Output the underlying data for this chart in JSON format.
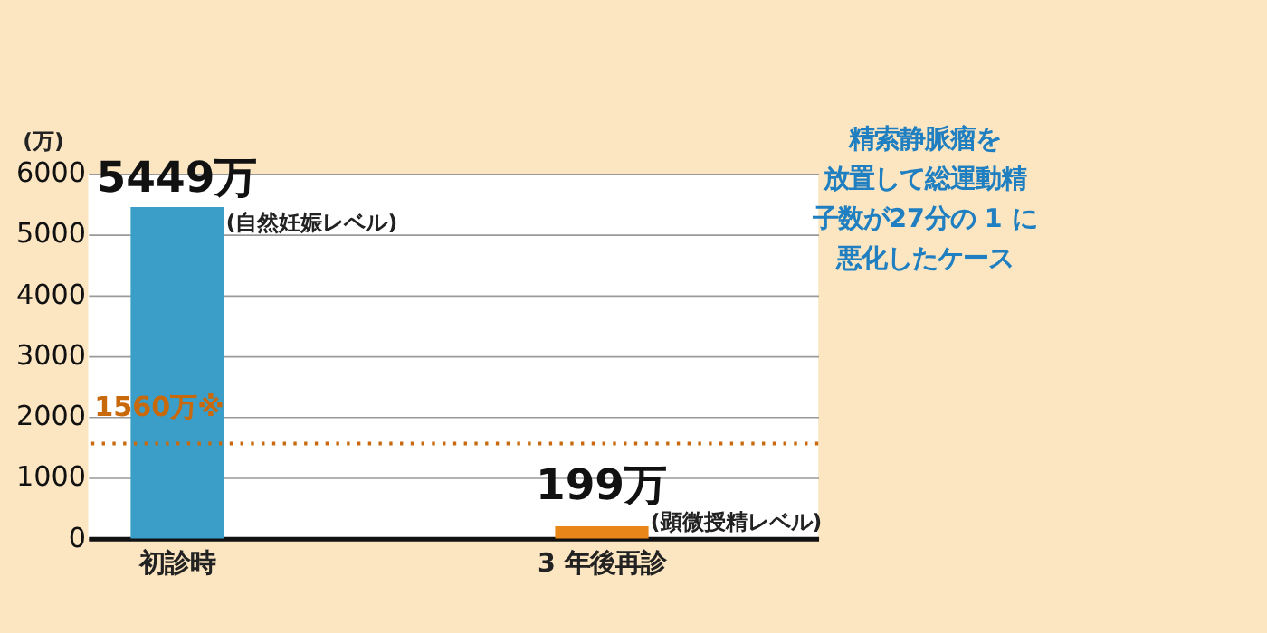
{
  "chart_data": {
    "type": "bar",
    "categories": [
      "初診時",
      "3 年後再診"
    ],
    "values": [
      5449,
      199
    ],
    "colors": [
      "#3a9ec8",
      "#e8861a"
    ],
    "value_labels": [
      "5449万",
      "199万"
    ],
    "ylabel": "(万)",
    "ylim": [
      0,
      6000
    ],
    "yticks": [
      0,
      1000,
      2000,
      3000,
      4000,
      5000,
      6000
    ],
    "grid": "y",
    "ref_lines": [
      {
        "axis": "y",
        "value": 1560,
        "label": "1560万※",
        "color": "#c8690c",
        "line_style": "dotted"
      }
    ],
    "annotations": [
      {
        "text": "(自然妊娠レベル)",
        "x": "初診時",
        "y": 5449
      },
      {
        "text": "(顕微授精レベル)",
        "x": "3 年後再診",
        "y": 199
      },
      "精索静脈瘤を",
      "放置して総運動精",
      "子数が27分の 1 に",
      "悪化したケース"
    ]
  }
}
